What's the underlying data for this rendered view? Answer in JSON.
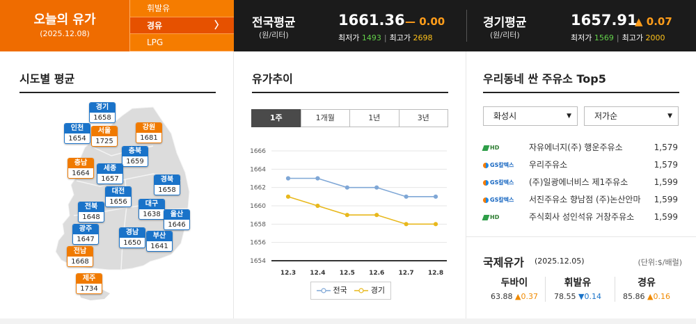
{
  "header": {
    "today_title": "오늘의 유가",
    "today_date": "(2025.12.08)",
    "fuel_menu": [
      "휘발유",
      "경유",
      "LPG"
    ],
    "national": {
      "name": "전국평균",
      "unit": "(원/리터)",
      "value": "1661.36",
      "change": "— 0.00",
      "min_label": "최저가",
      "min": "1493",
      "max_label": "최고가",
      "max": "2698"
    },
    "gyeonggi": {
      "name": "경기평균",
      "unit": "(원/리터)",
      "value": "1657.91",
      "change": "▲ 0.07",
      "min_label": "최저가",
      "min": "1569",
      "max_label": "최고가",
      "max": "2000"
    }
  },
  "regional": {
    "title": "시도별 평균",
    "regions": [
      {
        "name": "경기",
        "value": "1658",
        "color": "blue"
      },
      {
        "name": "인천",
        "value": "1654",
        "color": "blue"
      },
      {
        "name": "서울",
        "value": "1725",
        "color": "orange"
      },
      {
        "name": "강원",
        "value": "1681",
        "color": "orange"
      },
      {
        "name": "충북",
        "value": "1659",
        "color": "blue"
      },
      {
        "name": "충남",
        "value": "1664",
        "color": "orange"
      },
      {
        "name": "세종",
        "value": "1657",
        "color": "blue"
      },
      {
        "name": "경북",
        "value": "1658",
        "color": "blue"
      },
      {
        "name": "대전",
        "value": "1656",
        "color": "blue"
      },
      {
        "name": "전북",
        "value": "1648",
        "color": "blue"
      },
      {
        "name": "대구",
        "value": "1638",
        "color": "blue"
      },
      {
        "name": "울산",
        "value": "1646",
        "color": "blue"
      },
      {
        "name": "광주",
        "value": "1647",
        "color": "blue"
      },
      {
        "name": "경남",
        "value": "1650",
        "color": "blue"
      },
      {
        "name": "부산",
        "value": "1641",
        "color": "blue"
      },
      {
        "name": "전남",
        "value": "1668",
        "color": "orange"
      },
      {
        "name": "제주",
        "value": "1734",
        "color": "orange"
      }
    ]
  },
  "trend": {
    "title": "유가추이",
    "tabs": [
      "1주",
      "1개월",
      "1년",
      "3년"
    ],
    "active_tab": "1주"
  },
  "chart_data": {
    "type": "line",
    "x": [
      "12.3",
      "12.4",
      "12.5",
      "12.6",
      "12.7",
      "12.8"
    ],
    "yticks": [
      "1666",
      "1664",
      "1662",
      "1660",
      "1658",
      "1656",
      "1654"
    ],
    "ylim": [
      1654,
      1666
    ],
    "series": [
      {
        "name": "전국",
        "values": [
          1663,
          1663,
          1662,
          1662,
          1661,
          1661
        ],
        "color": "#7fa7d6"
      },
      {
        "name": "경기",
        "values": [
          1661,
          1660,
          1659,
          1659,
          1658,
          1658
        ],
        "color": "#e8b81c"
      }
    ],
    "grid": true,
    "legend": "bottom"
  },
  "top5": {
    "title": "우리동네 싼 주유소 Top5",
    "region_select": "화성시",
    "sort_select": "저가순",
    "stations": [
      {
        "brand": "hd",
        "logo": "HD",
        "name": "자유에너지(주) 행운주유소",
        "price": "1,579"
      },
      {
        "brand": "gs",
        "logo": "GS칼텍스",
        "name": "우리주유소",
        "price": "1,579"
      },
      {
        "brand": "gs",
        "logo": "GS칼텍스",
        "name": "(주)일광에너비스 제1주유소",
        "price": "1,599"
      },
      {
        "brand": "gs",
        "logo": "GS칼텍스",
        "name": "서진주유소 향남점 (주)논산안마",
        "price": "1,599"
      },
      {
        "brand": "hd",
        "logo": "HD",
        "name": "주식회사 성인석유 거창주유소",
        "price": "1,599"
      }
    ]
  },
  "intl": {
    "title": "국제유가",
    "date": "(2025.12.05)",
    "unit": "(단위:$/배럴)",
    "items": [
      {
        "name": "두바이",
        "value": "63.88",
        "change": "▲0.37",
        "dir": "up"
      },
      {
        "name": "휘발유",
        "value": "78.55",
        "change": "▼0.14",
        "dir": "down"
      },
      {
        "name": "경유",
        "value": "85.86",
        "change": "▲0.16",
        "dir": "up"
      }
    ]
  }
}
